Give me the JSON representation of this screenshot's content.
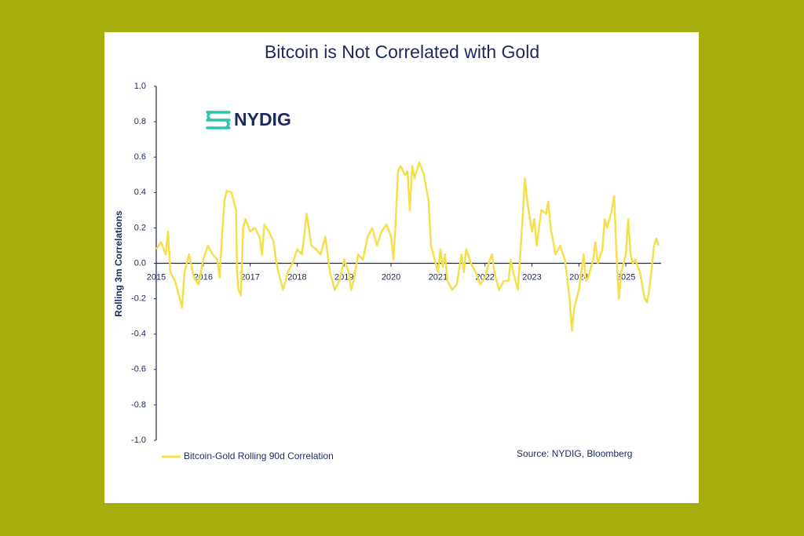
{
  "chart_data": {
    "type": "line",
    "title": "Bitcoin is Not Correlated with Gold",
    "logo": "NYDIG",
    "y_label": "Rolling 3m Correlations",
    "source": "Source: NYDIG, Bloomberg",
    "xlim": [
      2015,
      2025.75
    ],
    "xticks": [
      2015,
      2016,
      2017,
      2018,
      2019,
      2020,
      2021,
      2022,
      2023,
      2024,
      2025
    ],
    "ylim": [
      -1,
      1
    ],
    "yticks": [
      {
        "value": 1,
        "label": "1.0"
      },
      0.8,
      0.6,
      0.4,
      0.2,
      {
        "value": 0,
        "label": "0.0"
      },
      -0.2,
      -0.4,
      -0.6,
      -0.8,
      {
        "value": -1,
        "label": "-1.0"
      }
    ],
    "x": [
      2015.0,
      2015.1,
      2015.2,
      2015.25,
      2015.3,
      2015.4,
      2015.5,
      2015.55,
      2015.6,
      2015.7,
      2015.8,
      2015.9,
      2016.0,
      2016.1,
      2016.2,
      2016.3,
      2016.35,
      2016.4,
      2016.45,
      2016.5,
      2016.6,
      2016.65,
      2016.7,
      2016.72,
      2016.75,
      2016.8,
      2016.85,
      2016.9,
      2017.0,
      2017.1,
      2017.2,
      2017.25,
      2017.3,
      2017.4,
      2017.5,
      2017.55,
      2017.6,
      2017.7,
      2017.8,
      2017.9,
      2018.0,
      2018.1,
      2018.15,
      2018.2,
      2018.25,
      2018.3,
      2018.4,
      2018.5,
      2018.6,
      2018.65,
      2018.7,
      2018.75,
      2018.8,
      2018.9,
      2019.0,
      2019.1,
      2019.15,
      2019.2,
      2019.3,
      2019.4,
      2019.5,
      2019.6,
      2019.7,
      2019.8,
      2019.9,
      2020.0,
      2020.05,
      2020.1,
      2020.15,
      2020.2,
      2020.3,
      2020.35,
      2020.4,
      2020.45,
      2020.5,
      2020.6,
      2020.7,
      2020.8,
      2020.85,
      2020.9,
      2021.0,
      2021.05,
      2021.1,
      2021.15,
      2021.2,
      2021.3,
      2021.4,
      2021.5,
      2021.55,
      2021.6,
      2021.7,
      2021.8,
      2021.9,
      2022.0,
      2022.1,
      2022.15,
      2022.2,
      2022.3,
      2022.4,
      2022.5,
      2022.55,
      2022.6,
      2022.7,
      2022.75,
      2022.8,
      2022.85,
      2022.9,
      2023.0,
      2023.05,
      2023.1,
      2023.2,
      2023.3,
      2023.35,
      2023.4,
      2023.5,
      2023.6,
      2023.7,
      2023.75,
      2023.8,
      2023.85,
      2023.9,
      2024.0,
      2024.05,
      2024.1,
      2024.15,
      2024.2,
      2024.3,
      2024.35,
      2024.4,
      2024.5,
      2024.55,
      2024.6,
      2024.7,
      2024.75,
      2024.8,
      2024.85,
      2024.9,
      2025.0,
      2025.05,
      2025.1,
      2025.15,
      2025.2,
      2025.3,
      2025.4,
      2025.45,
      2025.5,
      2025.6,
      2025.65,
      2025.7
    ],
    "series": [
      {
        "name": "Bitcoin-Gold Rolling 90d Correlation",
        "color": "#f5df4d",
        "values": [
          0.08,
          0.12,
          0.05,
          0.18,
          -0.05,
          -0.1,
          -0.2,
          -0.25,
          -0.05,
          0.05,
          -0.08,
          -0.12,
          0.02,
          0.1,
          0.05,
          0.02,
          -0.08,
          0.15,
          0.35,
          0.41,
          0.4,
          0.35,
          0.3,
          -0.05,
          -0.15,
          -0.18,
          0.2,
          0.25,
          0.18,
          0.2,
          0.15,
          0.05,
          0.22,
          0.18,
          0.12,
          0.02,
          -0.05,
          -0.15,
          -0.05,
          0.0,
          0.08,
          0.05,
          0.15,
          0.28,
          0.2,
          0.1,
          0.08,
          0.05,
          0.15,
          0.05,
          -0.05,
          -0.1,
          -0.15,
          -0.1,
          0.02,
          -0.05,
          -0.15,
          -0.1,
          0.05,
          0.02,
          0.15,
          0.2,
          0.1,
          0.18,
          0.22,
          0.15,
          0.02,
          0.25,
          0.52,
          0.55,
          0.5,
          0.52,
          0.3,
          0.55,
          0.48,
          0.57,
          0.5,
          0.35,
          0.1,
          0.05,
          -0.05,
          0.08,
          -0.02,
          0.05,
          -0.1,
          -0.15,
          -0.12,
          0.05,
          -0.05,
          0.08,
          0.0,
          -0.05,
          -0.12,
          -0.08,
          0.02,
          0.05,
          -0.05,
          -0.15,
          -0.1,
          -0.1,
          0.02,
          -0.05,
          -0.15,
          0.05,
          0.25,
          0.48,
          0.35,
          0.18,
          0.25,
          0.1,
          0.3,
          0.28,
          0.35,
          0.2,
          0.05,
          0.1,
          0.02,
          -0.08,
          -0.2,
          -0.38,
          -0.25,
          -0.15,
          -0.05,
          0.05,
          -0.1,
          -0.08,
          0.02,
          0.12,
          0.0,
          0.08,
          0.25,
          0.2,
          0.3,
          0.38,
          0.05,
          -0.2,
          -0.05,
          0.05,
          0.25,
          0.05,
          0.0,
          0.02,
          -0.05,
          -0.2,
          -0.22,
          -0.15,
          0.1,
          0.14,
          0.1
        ]
      }
    ]
  }
}
